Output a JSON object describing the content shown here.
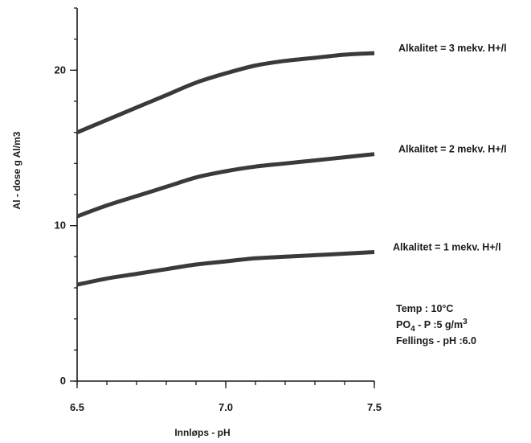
{
  "chart_data": {
    "type": "line",
    "xlabel": "Innløps - pH",
    "ylabel": "Al - dose g Al/m3",
    "xlim": [
      6.5,
      7.5
    ],
    "ylim": [
      0,
      24
    ],
    "x_ticks": [
      {
        "value": 6.5,
        "label": "6.5"
      },
      {
        "value": 7.0,
        "label": "7.0"
      },
      {
        "value": 7.5,
        "label": "7.5"
      }
    ],
    "x_minor_step": 0.1,
    "y_ticks": [
      {
        "value": 0,
        "label": "0"
      },
      {
        "value": 10,
        "label": "10"
      },
      {
        "value": 20,
        "label": "20"
      }
    ],
    "y_minor_step": 2,
    "grid": false,
    "legend": "labels at right end of each line",
    "series": [
      {
        "name": "Alkalitet = 3 mekv. H+/l",
        "x": [
          6.5,
          6.6,
          6.7,
          6.8,
          6.9,
          7.0,
          7.1,
          7.2,
          7.3,
          7.4,
          7.5
        ],
        "values": [
          16.0,
          16.8,
          17.6,
          18.4,
          19.2,
          19.8,
          20.3,
          20.6,
          20.8,
          21.0,
          21.1
        ]
      },
      {
        "name": "Alkalitet = 2 mekv. H+/l",
        "x": [
          6.5,
          6.6,
          6.7,
          6.8,
          6.9,
          7.0,
          7.1,
          7.2,
          7.3,
          7.4,
          7.5
        ],
        "values": [
          10.6,
          11.3,
          11.9,
          12.5,
          13.1,
          13.5,
          13.8,
          14.0,
          14.2,
          14.4,
          14.6
        ]
      },
      {
        "name": "Alkalitet = 1 mekv. H+/l",
        "x": [
          6.5,
          6.6,
          6.7,
          6.8,
          6.9,
          7.0,
          7.1,
          7.2,
          7.3,
          7.4,
          7.5
        ],
        "values": [
          6.2,
          6.6,
          6.9,
          7.2,
          7.5,
          7.7,
          7.9,
          8.0,
          8.1,
          8.2,
          8.3
        ]
      }
    ],
    "annotation": [
      "Temp : 10°C",
      "PO4 - P :5 g/m3",
      "Fellings - pH :6.0"
    ]
  }
}
